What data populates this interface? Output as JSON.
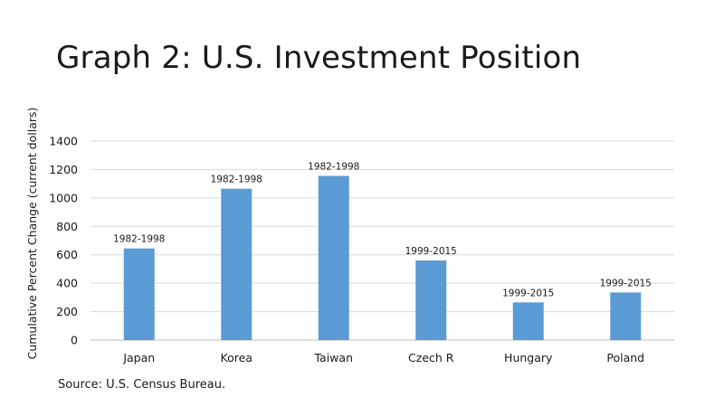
{
  "slide": {
    "title": "Graph 2: U.S. Investment Position",
    "source": "Source: U.S. Census Bureau."
  },
  "chart_data": {
    "type": "bar",
    "title": "",
    "xlabel": "",
    "ylabel": "Cumulative Percent Change (current dollars)",
    "ylim": [
      0,
      1400
    ],
    "yticks": [
      0,
      200,
      400,
      600,
      800,
      1000,
      1200,
      1400
    ],
    "grid": true,
    "categories": [
      "Japan",
      "Korea",
      "Taiwan",
      "Czech R",
      "Hungary",
      "Poland"
    ],
    "values": [
      645,
      1065,
      1155,
      560,
      265,
      335
    ],
    "data_labels": [
      "1982-1998",
      "1982-1998",
      "1982-1998",
      "1999-2015",
      "1999-2015",
      "1999-2015"
    ],
    "bar_color": "#5b9bd5"
  }
}
